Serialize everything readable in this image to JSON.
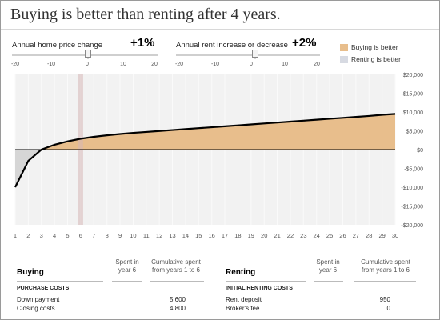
{
  "headline": "Buying is better than renting after 4 years.",
  "controls": {
    "home_price": {
      "label": "Annual home price change",
      "value_text": "+1%",
      "value": 1,
      "min": -20,
      "max": 20
    },
    "rent": {
      "label": "Annual rent increase or decrease",
      "value_text": "+2%",
      "value": 2,
      "min": -20,
      "max": 20
    },
    "tick_labels": [
      "-20",
      "-10",
      "0",
      "10",
      "20"
    ]
  },
  "legend": {
    "items": [
      {
        "label": "Buying is better",
        "color": "#e8be8c"
      },
      {
        "label": "Renting is better",
        "color": "#d7dae2"
      }
    ]
  },
  "colors": {
    "plot_bg": "#f2f2f2",
    "buy_fill": "#e8be8c",
    "rent_fill": "#d6d6d6",
    "line": "#000000",
    "marker": "#d5b6b6"
  },
  "chart_data": {
    "type": "area",
    "x": [
      1,
      2,
      3,
      4,
      5,
      6,
      7,
      8,
      9,
      10,
      11,
      12,
      13,
      14,
      15,
      16,
      17,
      18,
      19,
      20,
      21,
      22,
      23,
      24,
      25,
      26,
      27,
      28,
      29,
      30
    ],
    "y": [
      -10000,
      -3000,
      0,
      1300,
      2200,
      2900,
      3400,
      3800,
      4150,
      4450,
      4700,
      4950,
      5200,
      5450,
      5700,
      5950,
      6200,
      6450,
      6700,
      6950,
      7200,
      7450,
      7700,
      7950,
      8200,
      8450,
      8700,
      8950,
      9250,
      9500
    ],
    "xlim": [
      1,
      30
    ],
    "ylim": [
      -20000,
      20000
    ],
    "y_ticks": [
      20000,
      15000,
      10000,
      5000,
      0,
      -5000,
      -10000,
      -15000,
      -20000
    ],
    "y_tick_labels": [
      "$20,000",
      "$15,000",
      "$10,000",
      "$5,000",
      "$0",
      "-$5,000",
      "-$10,000",
      "-$15,000",
      "-$20,000"
    ],
    "x_tick_labels": [
      "1",
      "2",
      "3",
      "4",
      "5",
      "6",
      "7",
      "8",
      "9",
      "10",
      "11",
      "12",
      "13",
      "14",
      "15",
      "16",
      "17",
      "18",
      "19",
      "20",
      "21",
      "22",
      "23",
      "24",
      "25",
      "26",
      "27",
      "28",
      "29",
      "30"
    ],
    "selected_year": 6,
    "grid": "vertical",
    "legend_position": "top-right"
  },
  "buying_table": {
    "title": "Buying",
    "col1": "Spent in\nyear 6",
    "col2": "Cumulative spent\nfrom years 1 to 6",
    "section": "PURCHASE COSTS",
    "rows": [
      {
        "label": "Down payment",
        "year": "",
        "cumulative": "5,600"
      },
      {
        "label": "Closing costs",
        "year": "",
        "cumulative": "4,800"
      }
    ]
  },
  "renting_table": {
    "title": "Renting",
    "col1": "Spent in\nyear 6",
    "col2": "Cumulative spent\nfrom years 1 to 6",
    "section": "INITIAL RENTING COSTS",
    "rows": [
      {
        "label": "Rent deposit",
        "year": "",
        "cumulative": "950"
      },
      {
        "label": "Broker's fee",
        "year": "",
        "cumulative": "0"
      }
    ]
  }
}
